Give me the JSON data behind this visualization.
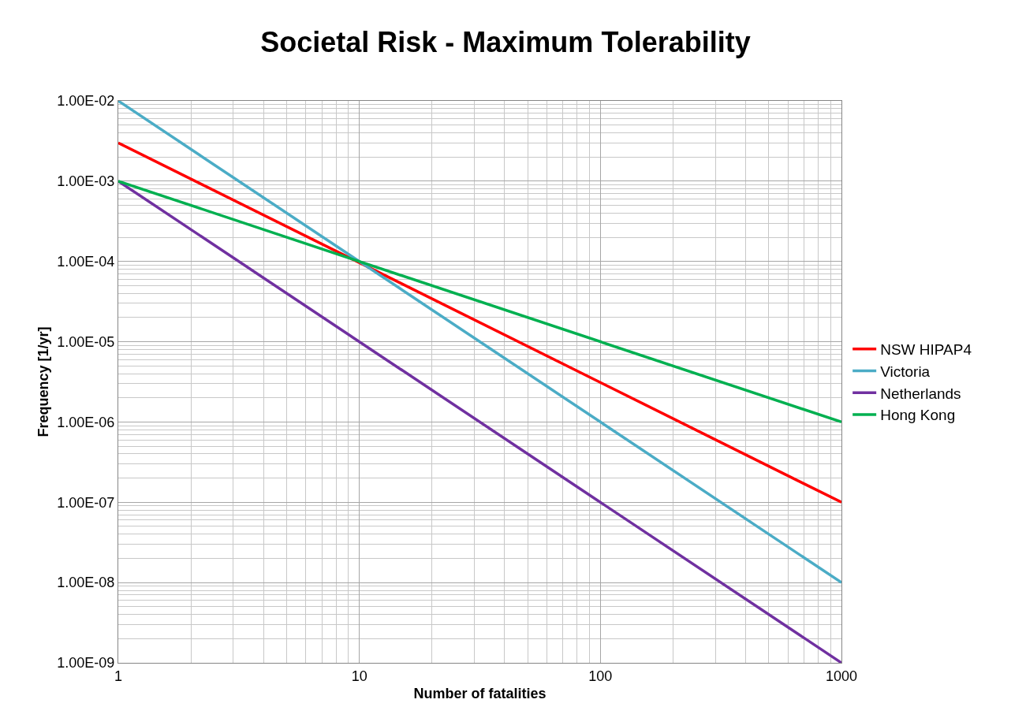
{
  "chart_data": {
    "type": "line",
    "title": "Societal Risk - Maximum Tolerability",
    "xlabel": "Number of fatalities",
    "ylabel": "Frequency [1/yr]",
    "log": "xy",
    "grid": true,
    "legend": "right",
    "marker": "none",
    "line_style": "solid",
    "xlim": [
      1,
      1000
    ],
    "xticks": [
      1,
      10,
      100,
      1000
    ],
    "ylim": [
      1e-09,
      0.01
    ],
    "yticks": [
      {
        "value": 1e-09,
        "label": "1.00E-09"
      },
      {
        "value": 1e-08,
        "label": "1.00E-08"
      },
      {
        "value": 1e-07,
        "label": "1.00E-07"
      },
      {
        "value": 1e-06,
        "label": "1.00E-06"
      },
      {
        "value": 1e-05,
        "label": "1.00E-05"
      },
      {
        "value": 0.0001,
        "label": "1.00E-04"
      },
      {
        "value": 0.001,
        "label": "1.00E-03"
      },
      {
        "value": 0.01,
        "label": "1.00E-02"
      }
    ],
    "x": [
      1,
      1000
    ],
    "series": [
      {
        "name": "NSW HIPAP4",
        "color": "#ff0000",
        "values": [
          0.003,
          1e-07
        ]
      },
      {
        "name": "Victoria",
        "color": "#4bacc6",
        "values": [
          0.01,
          1e-08
        ]
      },
      {
        "name": "Netherlands",
        "color": "#7030a0",
        "values": [
          0.001,
          1e-09
        ]
      },
      {
        "name": "Hong Kong",
        "color": "#00b050",
        "values": [
          0.001,
          1e-06
        ]
      }
    ]
  }
}
